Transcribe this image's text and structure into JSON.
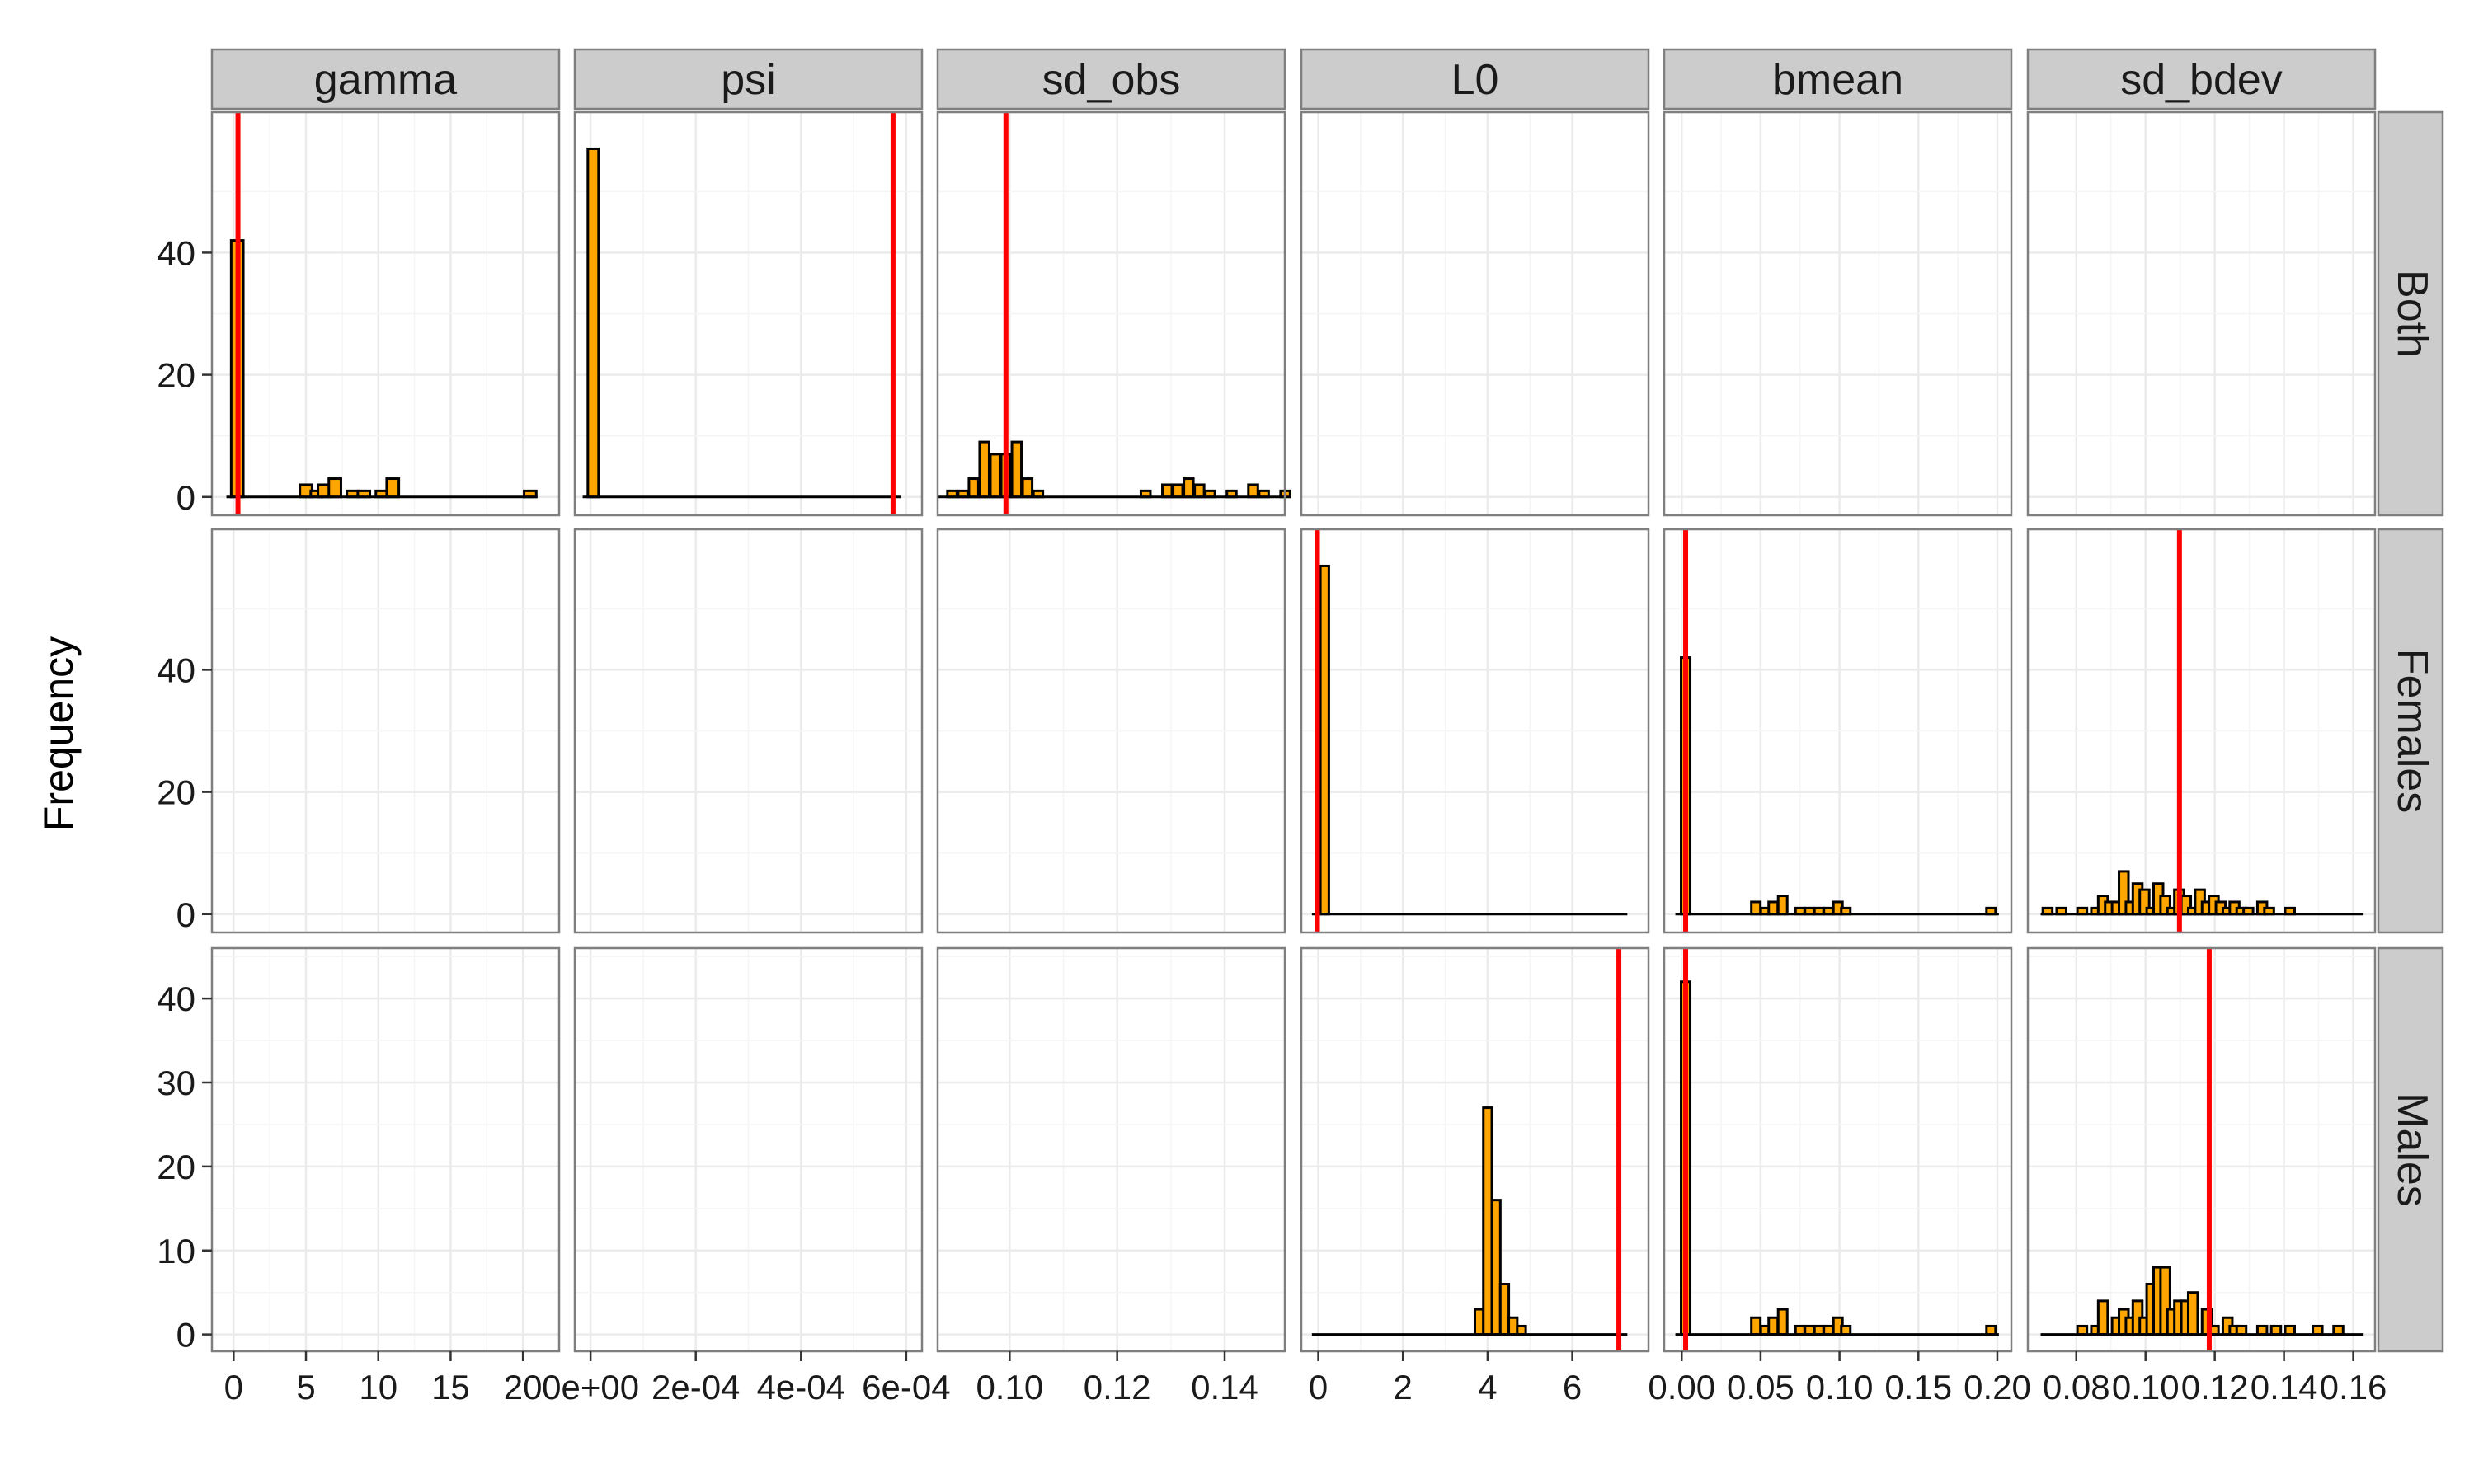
{
  "chart_data": {
    "type": "bar",
    "ylabel": "Frequency",
    "xlabel": "",
    "grid": true,
    "colors": {
      "bar_fill": "#FFA500",
      "bar_stroke": "#000000",
      "vline": "#FF0000",
      "strip_bg": "#CCCCCC",
      "panel_border": "#7F7F7F",
      "grid": "#EBEBEB"
    },
    "columns": [
      {
        "name": "gamma",
        "xlim": [
          -1.5,
          22.5
        ],
        "ticks": [
          0,
          5,
          10,
          15,
          20
        ],
        "tick_labels": [
          "0",
          "5",
          "10",
          "15",
          "20"
        ]
      },
      {
        "name": "psi",
        "xlim": [
          -3e-05,
          0.00063
        ],
        "ticks": [
          0,
          0.0002,
          0.0004,
          0.0006
        ],
        "tick_labels": [
          "0e+00",
          "2e-04",
          "4e-04",
          "6e-04"
        ]
      },
      {
        "name": "sd_obs",
        "xlim": [
          0.0866,
          0.1512
        ],
        "ticks": [
          0.1,
          0.12,
          0.14
        ],
        "tick_labels": [
          "0.10",
          "0.12",
          "0.14"
        ]
      },
      {
        "name": "L0",
        "xlim": [
          -0.4,
          7.8
        ],
        "ticks": [
          0,
          2,
          4,
          6
        ],
        "tick_labels": [
          "0",
          "2",
          "4",
          "6"
        ]
      },
      {
        "name": "bmean",
        "xlim": [
          -0.0111,
          0.2089
        ],
        "ticks": [
          0,
          0.05,
          0.1,
          0.15,
          0.2
        ],
        "tick_labels": [
          "0.00",
          "0.05",
          "0.10",
          "0.15",
          "0.20"
        ]
      },
      {
        "name": "sd_bdev",
        "xlim": [
          0.066,
          0.1663
        ],
        "ticks": [
          0.08,
          0.1,
          0.12,
          0.14,
          0.16
        ],
        "tick_labels": [
          "0.08",
          "0.10",
          "0.12",
          "0.14",
          "0.16"
        ]
      }
    ],
    "rows": [
      {
        "name": "Both",
        "ylim": [
          -3,
          63
        ],
        "ticks": [
          0,
          20,
          40
        ],
        "tick_labels": [
          "0",
          "20",
          "40"
        ]
      },
      {
        "name": "Females",
        "ylim": [
          -3,
          63
        ],
        "ticks": [
          0,
          20,
          40
        ],
        "tick_labels": [
          "0",
          "20",
          "40"
        ]
      },
      {
        "name": "Males",
        "ylim": [
          -2,
          46
        ],
        "ticks": [
          0,
          10,
          20,
          30,
          40
        ],
        "tick_labels": [
          "0",
          "10",
          "20",
          "30",
          "40"
        ]
      }
    ],
    "panels": [
      {
        "row": 0,
        "col": 0,
        "baseline": [
          -0.5,
          21.0
        ],
        "vline": 0.3,
        "bars": [
          [
            0.25,
            42
          ],
          [
            5.0,
            2
          ],
          [
            5.75,
            1
          ],
          [
            6.25,
            2
          ],
          [
            7.0,
            3
          ],
          [
            8.25,
            1
          ],
          [
            9.0,
            1
          ],
          [
            10.25,
            1
          ],
          [
            11.0,
            3
          ],
          [
            20.5,
            1
          ]
        ]
      },
      {
        "row": 0,
        "col": 1,
        "baseline": [
          -1.5e-05,
          0.00059
        ],
        "vline": 0.000575,
        "bars": [
          [
            5e-06,
            57
          ]
        ]
      },
      {
        "row": 0,
        "col": 2,
        "baseline": [
          0.0867,
          0.151
        ],
        "vline": 0.0993,
        "bars": [
          [
            0.0893,
            1
          ],
          [
            0.0913,
            1
          ],
          [
            0.0933,
            3
          ],
          [
            0.0953,
            9
          ],
          [
            0.0973,
            7
          ],
          [
            0.0993,
            7
          ],
          [
            0.1013,
            9
          ],
          [
            0.1033,
            3
          ],
          [
            0.1053,
            1
          ],
          [
            0.1253,
            1
          ],
          [
            0.1293,
            2
          ],
          [
            0.1313,
            2
          ],
          [
            0.1333,
            3
          ],
          [
            0.1353,
            2
          ],
          [
            0.1373,
            1
          ],
          [
            0.1413,
            1
          ],
          [
            0.1453,
            2
          ],
          [
            0.1473,
            1
          ],
          [
            0.1513,
            1
          ]
        ]
      },
      {
        "row": 1,
        "col": 3,
        "baseline": [
          -0.15,
          7.3
        ],
        "vline": -0.02,
        "bars": [
          [
            0.15,
            57
          ]
        ]
      },
      {
        "row": 1,
        "col": 4,
        "baseline": [
          -0.004,
          0.201
        ],
        "vline": 0.0025,
        "bars": [
          [
            0.0025,
            42
          ],
          [
            0.047,
            2
          ],
          [
            0.053,
            1
          ],
          [
            0.058,
            2
          ],
          [
            0.064,
            3
          ],
          [
            0.075,
            1
          ],
          [
            0.081,
            1
          ],
          [
            0.087,
            1
          ],
          [
            0.093,
            1
          ],
          [
            0.099,
            2
          ],
          [
            0.104,
            1
          ],
          [
            0.196,
            1
          ]
        ]
      },
      {
        "row": 1,
        "col": 5,
        "baseline": [
          0.0697,
          0.163
        ],
        "vline": 0.1098,
        "bars": [
          [
            0.0717,
            1
          ],
          [
            0.0757,
            1
          ],
          [
            0.0817,
            1
          ],
          [
            0.0857,
            1
          ],
          [
            0.0877,
            3
          ],
          [
            0.0897,
            2
          ],
          [
            0.0917,
            2
          ],
          [
            0.0937,
            7
          ],
          [
            0.0957,
            2
          ],
          [
            0.0977,
            5
          ],
          [
            0.0997,
            4
          ],
          [
            0.1017,
            1
          ],
          [
            0.1037,
            5
          ],
          [
            0.1057,
            3
          ],
          [
            0.1077,
            1
          ],
          [
            0.1097,
            4
          ],
          [
            0.1117,
            3
          ],
          [
            0.1137,
            1
          ],
          [
            0.1157,
            4
          ],
          [
            0.1177,
            2
          ],
          [
            0.1197,
            3
          ],
          [
            0.1217,
            2
          ],
          [
            0.1237,
            1
          ],
          [
            0.1257,
            2
          ],
          [
            0.1277,
            1
          ],
          [
            0.1297,
            1
          ],
          [
            0.1337,
            2
          ],
          [
            0.1357,
            1
          ],
          [
            0.1417,
            1
          ]
        ]
      },
      {
        "row": 2,
        "col": 3,
        "baseline": [
          -0.15,
          7.3
        ],
        "vline": 7.1,
        "bars": [
          [
            3.8,
            3
          ],
          [
            4.0,
            27
          ],
          [
            4.2,
            16
          ],
          [
            4.4,
            6
          ],
          [
            4.6,
            2
          ],
          [
            4.8,
            1
          ]
        ]
      },
      {
        "row": 2,
        "col": 4,
        "baseline": [
          -0.004,
          0.201
        ],
        "vline": 0.0025,
        "bars": [
          [
            0.0025,
            42
          ],
          [
            0.047,
            2
          ],
          [
            0.053,
            1
          ],
          [
            0.058,
            2
          ],
          [
            0.064,
            3
          ],
          [
            0.075,
            1
          ],
          [
            0.081,
            1
          ],
          [
            0.087,
            1
          ],
          [
            0.093,
            1
          ],
          [
            0.099,
            2
          ],
          [
            0.104,
            1
          ],
          [
            0.196,
            1
          ]
        ]
      },
      {
        "row": 2,
        "col": 5,
        "baseline": [
          0.0697,
          0.163
        ],
        "vline": 0.1184,
        "bars": [
          [
            0.0817,
            1
          ],
          [
            0.0857,
            1
          ],
          [
            0.0877,
            4
          ],
          [
            0.0917,
            2
          ],
          [
            0.0937,
            3
          ],
          [
            0.0957,
            2
          ],
          [
            0.0977,
            4
          ],
          [
            0.0997,
            2
          ],
          [
            0.1017,
            6
          ],
          [
            0.1037,
            8
          ],
          [
            0.1057,
            8
          ],
          [
            0.1077,
            3
          ],
          [
            0.1097,
            4
          ],
          [
            0.1117,
            4
          ],
          [
            0.1137,
            5
          ],
          [
            0.1177,
            3
          ],
          [
            0.1197,
            1
          ],
          [
            0.1237,
            2
          ],
          [
            0.1257,
            1
          ],
          [
            0.1277,
            1
          ],
          [
            0.1337,
            1
          ],
          [
            0.1377,
            1
          ],
          [
            0.1417,
            1
          ],
          [
            0.1497,
            1
          ],
          [
            0.1557,
            1
          ]
        ]
      }
    ]
  }
}
